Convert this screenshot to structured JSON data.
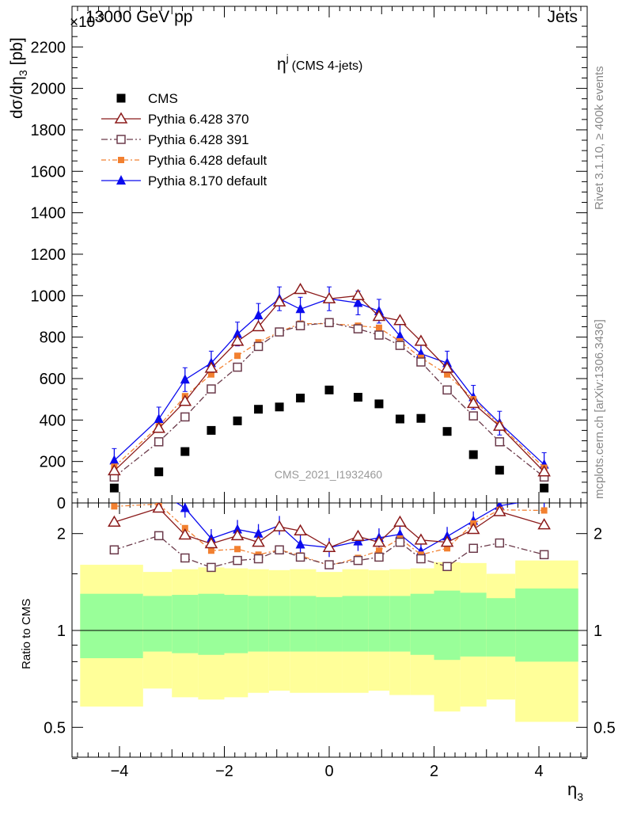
{
  "header": {
    "left": "13000 GeV pp",
    "right": "Jets",
    "exponent_label": "×10",
    "exponent_power": "-3"
  },
  "side_text": {
    "rivet": "Rivet 3.1.10, ≥ 400k events",
    "mcplots": "mcplots.cern.ch [arXiv:1306.3436]"
  },
  "plot_title": {
    "main": "η",
    "superscript": "j",
    "sub": "(CMS 4-jets)"
  },
  "watermark": "CMS_2021_I1932460",
  "axis": {
    "ylabel_top_main": "dσ/dη",
    "ylabel_top_sub": "3",
    "ylabel_top_unit": "[pb]",
    "ylabel_bottom": "Ratio to CMS",
    "xlabel_main": "η",
    "xlabel_sub": "3",
    "top_yticks": [
      "0",
      "200",
      "400",
      "600",
      "800",
      "1000",
      "1200",
      "1400",
      "1600",
      "1800",
      "2000",
      "2200"
    ],
    "bottom_yticks_left": [
      "0.5",
      "1",
      "2"
    ],
    "bottom_yticks_right": [
      "0.5",
      "1",
      "2"
    ],
    "xticks": [
      "−4",
      "−2",
      "0",
      "2",
      "4"
    ]
  },
  "colors": {
    "cms": "#000000",
    "p370": "#8b1a1a",
    "p391": "#6b3a4a",
    "p6def": "#f28030",
    "p8": "#0b0bee",
    "band_inner": "#99ff99",
    "band_outer": "#ffff99"
  },
  "chart_data": {
    "type": "scatter",
    "x": [
      -4.1,
      -3.25,
      -2.75,
      -2.25,
      -1.75,
      -1.35,
      -0.95,
      -0.55,
      0.0,
      0.55,
      0.95,
      1.35,
      1.75,
      2.25,
      2.75,
      3.25,
      4.1
    ],
    "xlim": [
      -4.9,
      4.9
    ],
    "ylim_top": [
      0,
      2320
    ],
    "ylim_ratio": [
      0.34,
      2.35
    ],
    "series": [
      {
        "name": "CMS",
        "key": "cms",
        "values": [
          72,
          150,
          248,
          350,
          396,
          452,
          463,
          506,
          545,
          510,
          478,
          405,
          408,
          345,
          233,
          158,
          72
        ]
      },
      {
        "name": "Pythia 6.428 370",
        "key": "p370",
        "values": [
          155,
          360,
          490,
          650,
          780,
          850,
          970,
          1030,
          985,
          1000,
          900,
          880,
          780,
          650,
          480,
          370,
          150
        ]
      },
      {
        "name": "Pythia 6.428 391",
        "key": "p391",
        "values": [
          125,
          295,
          415,
          550,
          655,
          755,
          825,
          855,
          870,
          840,
          810,
          760,
          680,
          545,
          420,
          295,
          125
        ]
      },
      {
        "name": "Pythia 6.428 default",
        "key": "p6def",
        "values": [
          175,
          370,
          515,
          620,
          710,
          775,
          825,
          865,
          865,
          855,
          845,
          780,
          700,
          620,
          500,
          375,
          170
        ]
      },
      {
        "name": "Pythia 8.170 default",
        "key": "p8",
        "values": [
          205,
          405,
          595,
          675,
          815,
          905,
          985,
          935,
          985,
          965,
          925,
          805,
          720,
          675,
          510,
          385,
          185
        ]
      }
    ],
    "ratio_series": [
      {
        "key": "p370",
        "values": [
          2.17,
          2.4,
          1.98,
          1.86,
          1.97,
          1.88,
          2.1,
          2.04,
          1.81,
          1.96,
          1.88,
          2.17,
          1.91,
          1.88,
          2.06,
          2.34,
          2.13
        ]
      },
      {
        "key": "p391",
        "values": [
          1.78,
          1.97,
          1.68,
          1.57,
          1.65,
          1.67,
          1.78,
          1.69,
          1.6,
          1.65,
          1.69,
          1.88,
          1.67,
          1.58,
          1.8,
          1.87,
          1.72
        ]
      },
      {
        "key": "p6def",
        "values": [
          2.43,
          2.47,
          2.08,
          1.77,
          1.79,
          1.72,
          1.78,
          1.71,
          1.59,
          1.68,
          1.77,
          1.93,
          1.72,
          1.8,
          2.15,
          2.37,
          2.36
        ]
      },
      {
        "key": "p8",
        "values": [
          2.85,
          2.7,
          2.4,
          1.93,
          2.06,
          2.0,
          2.12,
          1.85,
          1.81,
          1.89,
          1.94,
          1.99,
          1.76,
          1.96,
          2.19,
          2.44,
          2.57
        ]
      }
    ],
    "band_bins": [
      {
        "lo": -4.75,
        "hi": -3.55,
        "inner": [
          0.82,
          1.3
        ],
        "outer": [
          0.58,
          1.6
        ]
      },
      {
        "lo": -3.55,
        "hi": -3.0,
        "inner": [
          0.86,
          1.28
        ],
        "outer": [
          0.66,
          1.52
        ]
      },
      {
        "lo": -3.0,
        "hi": -2.5,
        "inner": [
          0.85,
          1.29
        ],
        "outer": [
          0.62,
          1.55
        ]
      },
      {
        "lo": -2.5,
        "hi": -2.0,
        "inner": [
          0.84,
          1.3
        ],
        "outer": [
          0.61,
          1.57
        ]
      },
      {
        "lo": -2.0,
        "hi": -1.55,
        "inner": [
          0.85,
          1.29
        ],
        "outer": [
          0.62,
          1.56
        ]
      },
      {
        "lo": -1.55,
        "hi": -1.15,
        "inner": [
          0.86,
          1.28
        ],
        "outer": [
          0.64,
          1.55
        ]
      },
      {
        "lo": -1.15,
        "hi": -0.75,
        "inner": [
          0.86,
          1.28
        ],
        "outer": [
          0.65,
          1.54
        ]
      },
      {
        "lo": -0.75,
        "hi": -0.25,
        "inner": [
          0.86,
          1.28
        ],
        "outer": [
          0.64,
          1.55
        ]
      },
      {
        "lo": -0.25,
        "hi": 0.25,
        "inner": [
          0.86,
          1.27
        ],
        "outer": [
          0.64,
          1.52
        ]
      },
      {
        "lo": 0.25,
        "hi": 0.75,
        "inner": [
          0.86,
          1.28
        ],
        "outer": [
          0.64,
          1.55
        ]
      },
      {
        "lo": 0.75,
        "hi": 1.15,
        "inner": [
          0.86,
          1.28
        ],
        "outer": [
          0.65,
          1.54
        ]
      },
      {
        "lo": 1.15,
        "hi": 1.55,
        "inner": [
          0.86,
          1.28
        ],
        "outer": [
          0.63,
          1.55
        ]
      },
      {
        "lo": 1.55,
        "hi": 2.0,
        "inner": [
          0.84,
          1.3
        ],
        "outer": [
          0.63,
          1.56
        ]
      },
      {
        "lo": 2.0,
        "hi": 2.5,
        "inner": [
          0.81,
          1.33
        ],
        "outer": [
          0.56,
          1.63
        ]
      },
      {
        "lo": 2.5,
        "hi": 3.0,
        "inner": [
          0.83,
          1.31
        ],
        "outer": [
          0.58,
          1.62
        ]
      },
      {
        "lo": 3.0,
        "hi": 3.55,
        "inner": [
          0.83,
          1.26
        ],
        "outer": [
          0.61,
          1.5
        ]
      },
      {
        "lo": 3.55,
        "hi": 4.75,
        "inner": [
          0.8,
          1.35
        ],
        "outer": [
          0.52,
          1.65
        ]
      }
    ],
    "legend_placement": "top-left"
  }
}
